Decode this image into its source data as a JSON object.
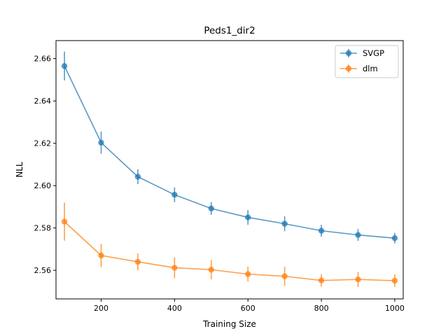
{
  "chart_data": {
    "type": "line",
    "title": "Peds1_dir2",
    "xlabel": "Training Size",
    "ylabel": "NLL",
    "xlim": [
      77,
      1023
    ],
    "ylim": [
      2.5465,
      2.6685
    ],
    "xticks": [
      200,
      400,
      600,
      800,
      1000
    ],
    "yticks": [
      2.56,
      2.58,
      2.6,
      2.62,
      2.64,
      2.66
    ],
    "ytick_labels": [
      "2.56",
      "2.58",
      "2.60",
      "2.62",
      "2.64",
      "2.66"
    ],
    "grid": false,
    "legend_position": "top-right",
    "x": [
      100,
      200,
      300,
      400,
      500,
      600,
      700,
      800,
      900,
      1000
    ],
    "series": [
      {
        "name": "SVGP",
        "color": "#1f77b4",
        "values": [
          2.6565,
          2.6203,
          2.6042,
          2.5957,
          2.5892,
          2.585,
          2.582,
          2.5787,
          2.5767,
          2.5752
        ],
        "errors": [
          0.0068,
          0.0052,
          0.0035,
          0.0035,
          0.003,
          0.0035,
          0.0035,
          0.0028,
          0.0028,
          0.0025
        ]
      },
      {
        "name": "dlm",
        "color": "#ff7f0e",
        "values": [
          2.583,
          2.567,
          2.564,
          2.5612,
          2.5603,
          2.5582,
          2.5572,
          2.5552,
          2.5557,
          2.5551
        ],
        "errors": [
          0.009,
          0.0055,
          0.004,
          0.005,
          0.0045,
          0.0035,
          0.0045,
          0.003,
          0.0035,
          0.003
        ]
      }
    ]
  }
}
